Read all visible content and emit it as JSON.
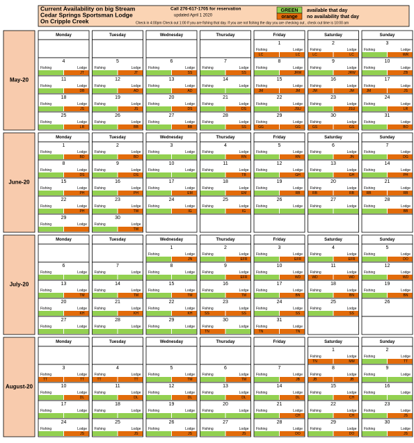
{
  "header": {
    "title": [
      "Current Availability on big Stream",
      "Cedar Springs Sportsman Lodge",
      "On Cripple Creek"
    ],
    "call": "Call 276-617-1705 for reservation",
    "updated": "updated    April 1 2020",
    "checkin": "Check in 4:00pm Check out 1:00 If you are fishing that day. If you are not fishing the day you are checking out , check out time is 10:00 am"
  },
  "legend": [
    {
      "label": "GREEN",
      "color": "#92d050",
      "text": "available that day"
    },
    {
      "label": "orange",
      "color": "#e26b0a",
      "text": "no availability that day"
    }
  ],
  "weekdays": [
    "Monday",
    "Tuesday",
    "Wednesday",
    "Thursday",
    "Friday",
    "Saturday",
    "Sunday"
  ],
  "labels": {
    "fishing": "Fishing",
    "lodge": "Lodge"
  },
  "months": [
    {
      "label": "May-20",
      "weeks": [
        [
          null,
          null,
          null,
          null,
          {
            "day": 1,
            "fishing": "LC",
            "lodge": "LC"
          },
          {
            "day": 2,
            "fishing": "LC",
            "lodge": "LC"
          },
          {
            "day": 3,
            "fishing": false,
            "lodge": "WR"
          }
        ],
        [
          {
            "day": 4,
            "fishing": false,
            "lodge": "JT"
          },
          {
            "day": 5,
            "fishing": false,
            "lodge": "JT"
          },
          {
            "day": 6,
            "fishing": false,
            "lodge": "SS"
          },
          {
            "day": 7,
            "fishing": false,
            "lodge": "SS"
          },
          {
            "day": 8,
            "fishing": false,
            "lodge": "JRW"
          },
          {
            "day": 9,
            "fishing": false,
            "lodge": "JRW"
          },
          {
            "day": 10,
            "fishing": false,
            "lodge": "ZB"
          }
        ],
        [
          {
            "day": 11,
            "fishing": false,
            "lodge": "DB"
          },
          {
            "day": 12,
            "fishing": false,
            "lodge": "AD"
          },
          {
            "day": 13,
            "fishing": false,
            "lodge": "AD"
          },
          {
            "day": 14,
            "fishing": false,
            "lodge": false
          },
          {
            "day": 15,
            "fishing": "JM",
            "lodge": "JM"
          },
          {
            "day": 16,
            "fishing": "JM",
            "lodge": "JM"
          },
          {
            "day": 17,
            "fishing": "JM",
            "lodge": "JS"
          }
        ],
        [
          {
            "day": 18,
            "fishing": false,
            "lodge": "JS"
          },
          {
            "day": 19,
            "fishing": false,
            "lodge": "JS"
          },
          {
            "day": 20,
            "fishing": false,
            "lodge": "DS"
          },
          {
            "day": 21,
            "fishing": false,
            "lodge": "DS"
          },
          {
            "day": 22,
            "fishing": false,
            "lodge": "JSU"
          },
          {
            "day": 23,
            "fishing": false,
            "lodge": "JSU"
          },
          {
            "day": 24,
            "fishing": false,
            "lodge": "LR"
          }
        ],
        [
          {
            "day": 25,
            "fishing": false,
            "lodge": "LR"
          },
          {
            "day": 26,
            "fishing": false,
            "lodge": "BB"
          },
          {
            "day": 27,
            "fishing": false,
            "lodge": "BB"
          },
          {
            "day": 28,
            "fishing": false,
            "lodge": "SS"
          },
          {
            "day": 29,
            "fishing": "GG",
            "lodge": "GG"
          },
          {
            "day": 30,
            "fishing": "GS",
            "lodge": "GS"
          },
          {
            "day": 31,
            "fishing": false,
            "lodge": "BO"
          }
        ]
      ]
    },
    {
      "label": "June-20",
      "weeks": [
        [
          {
            "day": 1,
            "fishing": false,
            "lodge": "BD"
          },
          {
            "day": 2,
            "fishing": false,
            "lodge": "BD"
          },
          {
            "day": 3,
            "fishing": false,
            "lodge": false
          },
          {
            "day": 4,
            "fishing": false,
            "lodge": "RN"
          },
          {
            "day": 5,
            "fishing": false,
            "lodge": "RN"
          },
          {
            "day": 6,
            "fishing": false,
            "lodge": "JN"
          },
          {
            "day": 7,
            "fishing": false,
            "lodge": "DG"
          }
        ],
        [
          {
            "day": 8,
            "fishing": false,
            "lodge": "DS"
          },
          {
            "day": 9,
            "fishing": false,
            "lodge": "DS"
          },
          {
            "day": 10,
            "fishing": false,
            "lodge": false
          },
          {
            "day": 11,
            "fishing": false,
            "lodge": "TB"
          },
          {
            "day": 12,
            "fishing": false,
            "lodge": "GH"
          },
          {
            "day": 13,
            "fishing": false,
            "lodge": "GH"
          },
          {
            "day": 14,
            "fishing": false,
            "lodge": "PH"
          }
        ],
        [
          {
            "day": 15,
            "fishing": false,
            "lodge": "PH"
          },
          {
            "day": 16,
            "fishing": false,
            "lodge": "PH"
          },
          {
            "day": 17,
            "fishing": false,
            "lodge": "EM"
          },
          {
            "day": 18,
            "fishing": false,
            "lodge": "EM"
          },
          {
            "day": 19,
            "fishing": false,
            "lodge": "RB"
          },
          {
            "day": 20,
            "fishing": "RB",
            "lodge": "RB"
          },
          {
            "day": 21,
            "fishing": "RB",
            "lodge": "RB"
          }
        ],
        [
          {
            "day": 22,
            "fishing": false,
            "lodge": "PH"
          },
          {
            "day": 23,
            "fishing": false,
            "lodge": "TW"
          },
          {
            "day": 24,
            "fishing": false,
            "lodge": "IG"
          },
          {
            "day": 25,
            "fishing": false,
            "lodge": "IG"
          },
          {
            "day": 26,
            "fishing": false,
            "lodge": false
          },
          {
            "day": 27,
            "fishing": false,
            "lodge": false
          },
          {
            "day": 28,
            "fishing": false,
            "lodge": "BB"
          }
        ],
        [
          {
            "day": 29,
            "fishing": false,
            "lodge": true
          },
          {
            "day": 30,
            "fishing": false,
            "lodge": "TW"
          },
          null,
          null,
          null,
          null,
          null
        ]
      ]
    },
    {
      "label": "July-20",
      "weeks": [
        [
          null,
          null,
          {
            "day": 1,
            "fishing": false,
            "lodge": "JN"
          },
          {
            "day": 2,
            "fishing": false,
            "lodge": "EFR"
          },
          {
            "day": 3,
            "fishing": false,
            "lodge": "EFR"
          },
          {
            "day": 4,
            "fishing": false,
            "lodge": "EFR"
          },
          {
            "day": 5,
            "fishing": false,
            "lodge": "DO"
          }
        ],
        [
          {
            "day": 6,
            "fishing": false,
            "lodge": false
          },
          {
            "day": 7,
            "fishing": false,
            "lodge": false
          },
          {
            "day": 8,
            "fishing": false,
            "lodge": false
          },
          {
            "day": 9,
            "fishing": false,
            "lodge": "EFR"
          },
          {
            "day": 10,
            "fishing": false,
            "lodge": "WD"
          },
          {
            "day": 11,
            "fishing": "WD",
            "lodge": "WD"
          },
          {
            "day": 12,
            "fishing": false,
            "lodge": "WD"
          }
        ],
        [
          {
            "day": 13,
            "fishing": false,
            "lodge": "TM"
          },
          {
            "day": 14,
            "fishing": false,
            "lodge": "TM"
          },
          {
            "day": 15,
            "fishing": false,
            "lodge": "TM"
          },
          {
            "day": 16,
            "fishing": false,
            "lodge": "TM"
          },
          {
            "day": 17,
            "fishing": false,
            "lodge": "BN"
          },
          {
            "day": 18,
            "fishing": false,
            "lodge": "BN"
          },
          {
            "day": 19,
            "fishing": false,
            "lodge": "BN"
          }
        ],
        [
          {
            "day": 20,
            "fishing": false,
            "lodge": "KH"
          },
          {
            "day": 21,
            "fishing": false,
            "lodge": "KH"
          },
          {
            "day": 22,
            "fishing": false,
            "lodge": "KH"
          },
          {
            "day": 23,
            "fishing": "SS",
            "lodge": "SS"
          },
          {
            "day": 24,
            "fishing": false,
            "lodge": "SS"
          },
          {
            "day": 25,
            "fishing": false,
            "lodge": "SS"
          },
          {
            "day": 26
          }
        ],
        [
          {
            "day": 27,
            "fishing": false,
            "lodge": false
          },
          {
            "day": 28,
            "fishing": false,
            "lodge": false
          },
          {
            "day": 29,
            "fishing": false,
            "lodge": false
          },
          {
            "day": 30,
            "fishing": "TN",
            "lodge": false
          },
          {
            "day": 31,
            "fishing": "TN",
            "lodge": "TN"
          },
          null,
          null
        ]
      ]
    },
    {
      "label": "August-20",
      "weeks": [
        [
          null,
          null,
          null,
          null,
          null,
          {
            "day": 1,
            "fishing": "TN",
            "lodge": "MM"
          },
          {
            "day": 2,
            "fishing": false,
            "lodge": "TT"
          }
        ],
        [
          {
            "day": 3,
            "fishing": "TT",
            "lodge": "TT"
          },
          {
            "day": 4,
            "fishing": "TT",
            "lodge": "TT"
          },
          {
            "day": 5,
            "fishing": false,
            "lodge": "TM"
          },
          {
            "day": 6,
            "fishing": false,
            "lodge": "TM"
          },
          {
            "day": 7,
            "fishing": false,
            "lodge": "JB"
          },
          {
            "day": 8,
            "fishing": "JB",
            "lodge": "JB"
          },
          {
            "day": 9,
            "fishing": false,
            "lodge": false
          }
        ],
        [
          {
            "day": 10,
            "fishing": false,
            "lodge": "DL"
          },
          {
            "day": 11,
            "fishing": false,
            "lodge": "DL"
          },
          {
            "day": 12,
            "fishing": false,
            "lodge": "DL"
          },
          {
            "day": 13,
            "fishing": false,
            "lodge": "DL"
          },
          {
            "day": 14,
            "fishing": false,
            "lodge": "DL"
          },
          {
            "day": 15,
            "fishing": false,
            "lodge": "CH"
          },
          {
            "day": 16,
            "fishing": false,
            "lodge": false
          }
        ],
        [
          {
            "day": 17,
            "fishing": false,
            "lodge": false
          },
          {
            "day": 18,
            "fishing": false,
            "lodge": false
          },
          {
            "day": 19,
            "fishing": false,
            "lodge": false
          },
          {
            "day": 20,
            "fishing": false,
            "lodge": false
          },
          {
            "day": 21,
            "fishing": false,
            "lodge": "CH"
          },
          {
            "day": 22,
            "fishing": false,
            "lodge": "CH"
          },
          {
            "day": 23,
            "fishing": false,
            "lodge": "JS"
          }
        ],
        [
          {
            "day": 24,
            "fishing": false,
            "lodge": "JS"
          },
          {
            "day": 25,
            "fishing": false,
            "lodge": "JS"
          },
          {
            "day": 26,
            "fishing": false,
            "lodge": "JS"
          },
          {
            "day": 27,
            "fishing": false,
            "lodge": "JS"
          },
          {
            "day": 28,
            "fishing": false,
            "lodge": "DO"
          },
          {
            "day": 29,
            "fishing": false,
            "lodge": "DO"
          },
          {
            "day": 30,
            "fishing": false,
            "lodge": "JS"
          }
        ]
      ]
    }
  ]
}
